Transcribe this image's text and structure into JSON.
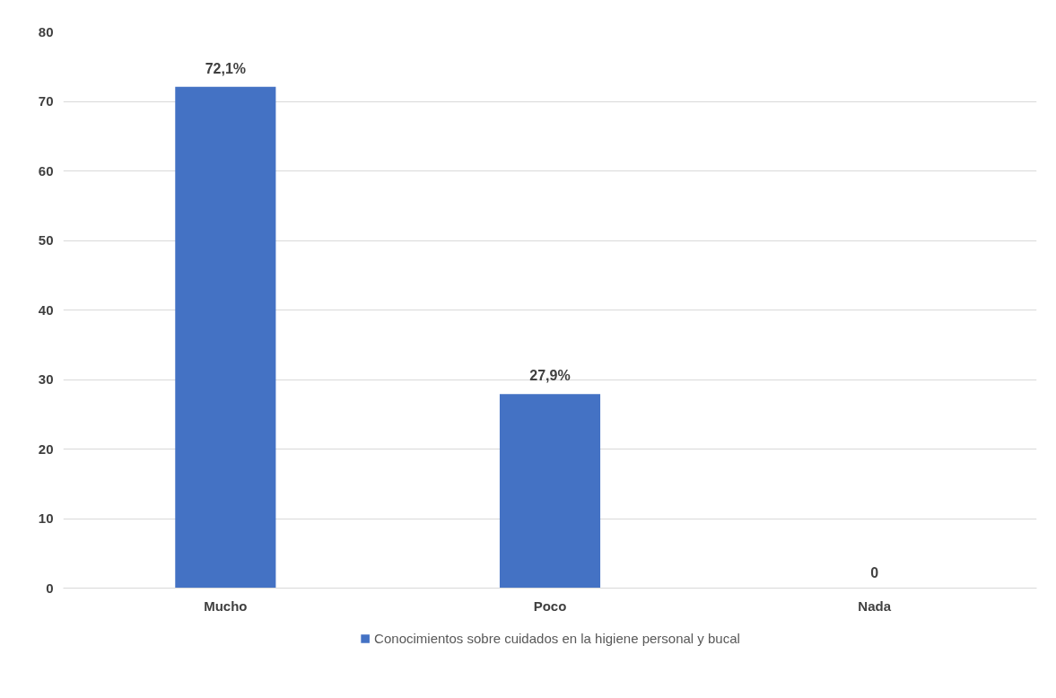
{
  "chart_data": {
    "type": "bar",
    "categories": [
      "Mucho",
      "Poco",
      "Nada"
    ],
    "series": [
      {
        "name": "Conocimientos sobre cuidados en la higiene personal y bucal",
        "color": "#4472c4",
        "values": [
          72.1,
          27.9,
          0
        ],
        "value_labels": [
          "72,1%",
          "27,9%",
          "0"
        ]
      }
    ],
    "ylim": [
      0,
      80
    ],
    "yticks": [
      0,
      10,
      20,
      30,
      40,
      50,
      60,
      70,
      80
    ],
    "grid": "y",
    "legend": "bottom"
  }
}
